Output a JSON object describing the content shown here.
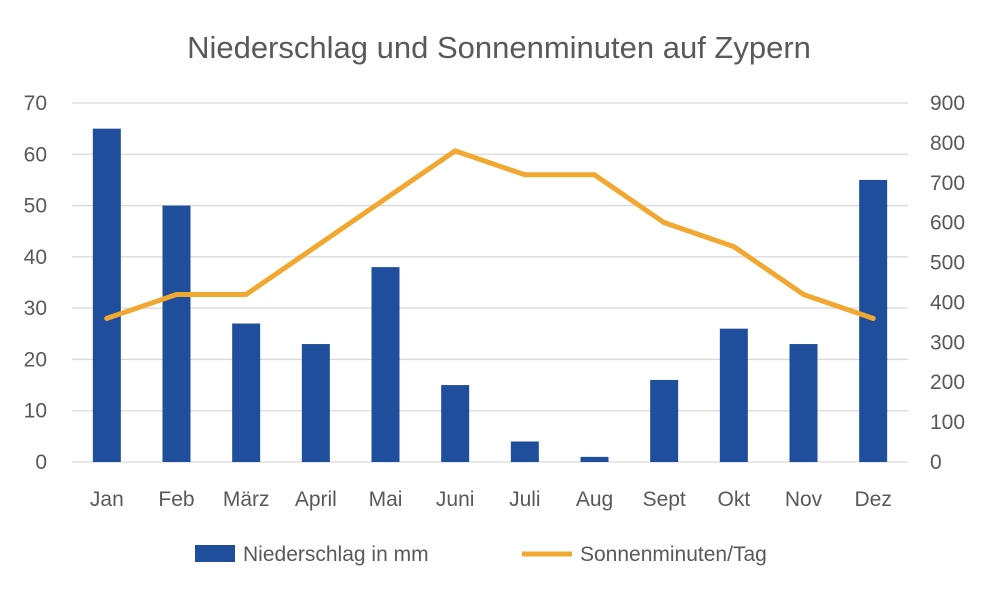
{
  "chart_data": {
    "type": "bar",
    "title": "Niederschlag und Sonnenminuten auf Zypern",
    "categories": [
      "Jan",
      "Feb",
      "März",
      "April",
      "Mai",
      "Juni",
      "Juli",
      "Aug",
      "Sept",
      "Okt",
      "Nov",
      "Dez"
    ],
    "series": [
      {
        "name": "Niederschlag in mm",
        "type": "bar",
        "axis": "left",
        "color": "#1f4e9c",
        "values": [
          65,
          50,
          27,
          23,
          38,
          15,
          4,
          1,
          16,
          26,
          23,
          55
        ]
      },
      {
        "name": "Sonnenminuten/Tag",
        "type": "line",
        "axis": "right",
        "color": "#f0a830",
        "values": [
          360,
          420,
          420,
          540,
          660,
          780,
          720,
          720,
          600,
          540,
          420,
          360
        ]
      }
    ],
    "y_left": {
      "min": 0,
      "max": 70,
      "step": 10
    },
    "y_right": {
      "min": 0,
      "max": 900,
      "step": 100
    },
    "grid": true,
    "legend": "bottom"
  }
}
